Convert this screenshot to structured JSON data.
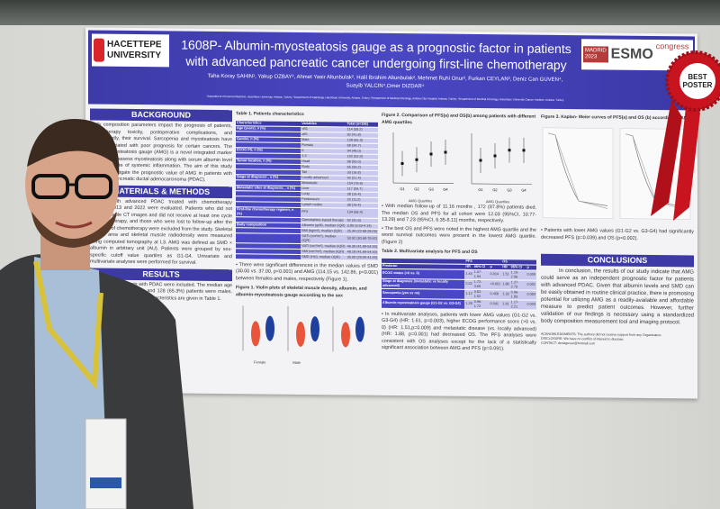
{
  "poster": {
    "university": [
      "HACETTEPE",
      "UNIVERSITY"
    ],
    "title": "1608P- Albumin-myosteatosis gauge as a prognostic factor in patients with advanced pancreatic cancer undergoing first-line chemotherapy",
    "authors": "Taha Koray SAHIN¹, Yakup OZBAY², Ahmet Yasir Altunbulak², Halil Ibrahim Altunbulak², Mehmet Ruhi Onur², Furkan CEYLAN³, Deniz Can GUVEN⁴, Suayib YALCIN⁴,Omer DIZDAR⁴",
    "affiliations": "¹Department of Internal Medicine, Hacettepe University, Ankara, Turkey; ²Department of Radiology, Hacettepe University, Ankara, Turkey; ³Department of Medical Oncology, Ankara City Hospital, Ankara, Turkey; ⁴Department of Medical Oncology, Hacettepe University Cancer Institute, Ankara, Turkey",
    "congress": {
      "city": "MADRID",
      "year": "2023",
      "brand": "ESMO",
      "word": "congress"
    },
    "background": {
      "heading": "BACKGROUND",
      "text": "Body composition parameters impact the prognosis of patients, chemotherapy toxicity, postoperative complications, and consequently, their survival. Sarcopenia and myosteatosis have been associated with poor prognosis for certain cancers. The albumin-myosteatosis gauge (AMG) is a novel integrated marker proposed to assess myosteatosis along with serum albumin level as a surrogate of systemic inflammation. The aim of this study was to investigate the prognostic value of AMG in patients with advanced pancreatic ductal adenocarcinoma (PDAC)."
    },
    "methods": {
      "heading": "MATERIALS & METHODS",
      "text": "Patients with advanced PDAC treated with chemotherapy between 2013 and 2022 were evaluated. Patients who did not have available CT images and did not receive at least one cycle of chemotherapy, and those who were lost to follow-up after the first dose of chemotherapy were excluded from the study. Skeletal muscle area and skeletal muscle radiodensity were measured using computed tomography at L3. AMG was defined as SMD × albumin in arbitrary unit (AU). Patients were grouped by sex-specific cutoff value quartiles as G1-G4. Univariate and multivariate analyses were performed for survival."
    },
    "results": {
      "heading": "RESULTS",
      "text": "A total of 196 patients with PDAC were included. The median age of patients was 61 years and 128 (65.3%) patients were males. Demographic and clinical characteristics are given in Table 1."
    },
    "table1": {
      "caption": "Table 1. Patients characteristics",
      "headers": [
        "Characteristics",
        "Variables",
        "Total (n=196)"
      ],
      "rows": [
        [
          "Age (years), n (%)",
          "<65",
          "114 (58.2)"
        ],
        [
          "",
          "≥65",
          "82 (41.8)"
        ],
        [
          "Gender, n (%)",
          "Male",
          "128 (65.3)"
        ],
        [
          "",
          "Female",
          "68 (34.7)"
        ],
        [
          "ECOG PS, n (%)",
          "0",
          "94 (48.0)"
        ],
        [
          "",
          "1-2",
          "102 (52.0)"
        ],
        [
          "Tumor location, n (%)",
          "Head",
          "98 (50.0)"
        ],
        [
          "",
          "Body",
          "65 (33.2)"
        ],
        [
          "",
          "Tail",
          "33 (16.8)"
        ],
        [
          "Stage at diagnosis , n (%)",
          "Locally advanced",
          "42 (21.4)"
        ],
        [
          "",
          "Metastatic",
          "154 (78.6)"
        ],
        [
          "Metastatic sites at diagnosis, , n (%)",
          "Liver",
          "117 (59.7)"
        ],
        [
          "",
          "Lung",
          "38 (19.4)"
        ],
        [
          "",
          "Peritoneum",
          "22 (11.2)"
        ],
        [
          "",
          "Lymph nodes",
          "38 (19.4)"
        ],
        [
          "First-line chemotherapy regimen, n (%)",
          "FFX",
          "134 (68.4)"
        ],
        [
          "",
          "Gemcitabine-based therapy",
          "62 (31.6)"
        ],
        [
          "Body composition",
          "Albumin (g/dl), median (IQR)",
          "3.89 (3.53-4.14)"
        ],
        [
          "",
          "BMI (kg/m²), median (IQR)",
          "25.34 (22.68-28.03)"
        ],
        [
          "",
          "SATI (cm²/m²), median (IQR)",
          "50.92 (30.68-78.62)"
        ],
        [
          "",
          "VATI (cm²/m²), median (IQR)",
          "46.39 (41.89-54.50)"
        ],
        [
          "",
          "SMI (cm²/m²), median (IQR)",
          "48.18 (41.69-54.50)"
        ],
        [
          "",
          "SMD (HU), median (IQR)",
          "35.00 (29.00-41.00)"
        ]
      ]
    },
    "sex_bullet": "There were significant differences in the median values of SMD (30.00 vs. 37.00, p<0.001) and AMG (114.15 vs. 142.86, p<0.001) between females and males, respectively (Figure 1).",
    "fig1_caption": "Figure 1. Violin plots of skeletal muscle density, albumin, and albumin-myosteatosis gauge according to the sex",
    "fig1_groups": [
      "Female",
      "Male"
    ],
    "fig2_caption": "Figure 2. Comparison of PFS(a) and OS(b) among patients with different AMG quartiles",
    "fig2_xlabel": "AMG Quartiles",
    "quartiles": [
      "G1",
      "G2",
      "G3",
      "G4"
    ],
    "fig2_pfs": [
      5,
      6,
      7.5,
      8
    ],
    "fig2_os": [
      10,
      12,
      14.5,
      14.5
    ],
    "bullets2": [
      "With median follow-up of 11.16 months , 172 (87.8%) patients died. The median OS and PFS for all cohort were 12.03 (95%CI, 10.77-13.29) and 7.23 (95%CI, 6.35-8.11) months, respectively.",
      "The best OS and PFS were noted in the highest AMG quartile and the worst survival outcomes were present in the lowest AMG quartile. (Figure 2)"
    ],
    "table2": {
      "caption": "Table 2. Multivariate analysis for PFS and OS",
      "groups": [
        "PFS",
        "OS"
      ],
      "headers": [
        "Predictor",
        "HR",
        "95% CI",
        "p",
        "HR",
        "95% CI",
        "p"
      ],
      "rows": [
        [
          "ECOG status (>0 vs. 0)",
          "1.44",
          "1.07-1.94",
          "0.014",
          "1.51",
          "1.10-2.06",
          "0.009"
        ],
        [
          "Stage at diagnosis (metastatic vs locally advanced)",
          "2.52",
          "1.72-3.69",
          "<0.001",
          "1.88",
          "1.27-2.79",
          "0.001"
        ],
        [
          "Sarcopenia (yes vs no)",
          "1.12",
          "0.82-1.52",
          "0.458",
          "1.33",
          "0.96-1.83",
          "0.083"
        ],
        [
          "Albumin-myosteatosis gauge (G1-G2 vs. G3-G4)",
          "1.28",
          "0.96-1.72",
          "0.091",
          "1.61",
          "1.17-2.21",
          "0.003"
        ]
      ]
    },
    "multi_bullet": "In multivariate analyses, patients with lower AMG values (G1-G2 vs. G3-G4) (HR: 1.61, p=0.003), higher ECOG performance score (>0 vs. 0) (HR: 1.51,p=0.009) and metastatic disease (vs. locally advanced) (HR: 1.88, p=0.001) had decreased OS. The PFS analyses were consistent with OS analyses except for the lack of a statistically significant association between AMG and PFS (p=0.091).",
    "fig3_caption": "Figure 3. Kaplan- Meier curves of PFS(a) and OS (b) according to AMG",
    "fig3_bullet": "Patients with lower AMG values (G1-G2 vs. G3-G4) had significantly decreased PFS (p=0.039) and OS (p=0.002).",
    "conclusions": {
      "heading": "CONCLUSIONS",
      "text": "In conclusion, the results of our study indicate that AMG could serve as an independent prognostic factor for patients with advanced PDAC. Given that albumin levels and SMD can be easily obtained in routine clinical practice, there is promosing potential for utilizing AMG as a readily-available and affordable measure to predict patient outcomes. However, further validation of our findings is necessary using a standardized body composition measurement tool and imaging protocol."
    },
    "footer": {
      "ack": "ACKNOWLEDGMENTS: The authors did not receive support from any Organization.",
      "disclosure": "DISCLOSURE: We have no conflict of interest to disclose.",
      "contact": "CONTACT: denizguven@hotmail.com"
    }
  },
  "rosette": {
    "label": "BEST POSTER"
  },
  "colors": {
    "poster_blue": "#3d3aa8",
    "ribbon_red": "#c8141e",
    "female": "#e8553a",
    "male": "#1f3f9e"
  }
}
